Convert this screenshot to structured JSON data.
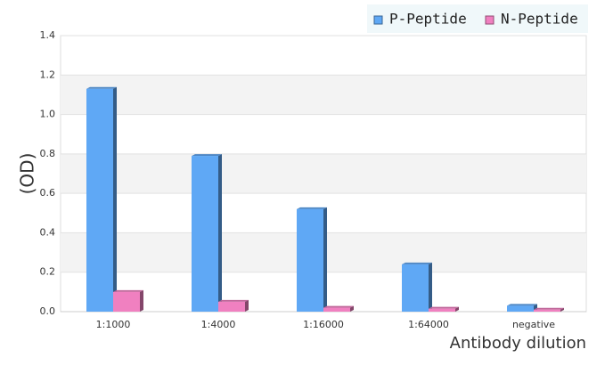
{
  "chart_data": {
    "type": "bar",
    "x_label": "Antibody dilution",
    "y_label": "(OD)",
    "categories": [
      "1:1000",
      "1:4000",
      "1:16000",
      "1:64000",
      "negative"
    ],
    "series": [
      {
        "name": "P-Peptide",
        "color": "#5fa8f5",
        "values": [
          1.13,
          0.79,
          0.52,
          0.24,
          0.03
        ]
      },
      {
        "name": "N-Peptide",
        "color": "#f080c0",
        "values": [
          0.1,
          0.05,
          0.02,
          0.015,
          0.01
        ]
      }
    ],
    "ylim": [
      0,
      1.4
    ],
    "yticks": [
      {
        "value": 0,
        "label": "0.0"
      },
      0.2,
      0.4,
      0.6,
      0.8,
      {
        "value": 1,
        "label": "1.0"
      },
      1.2,
      1.4
    ],
    "grid": true,
    "legend": "top-right"
  }
}
